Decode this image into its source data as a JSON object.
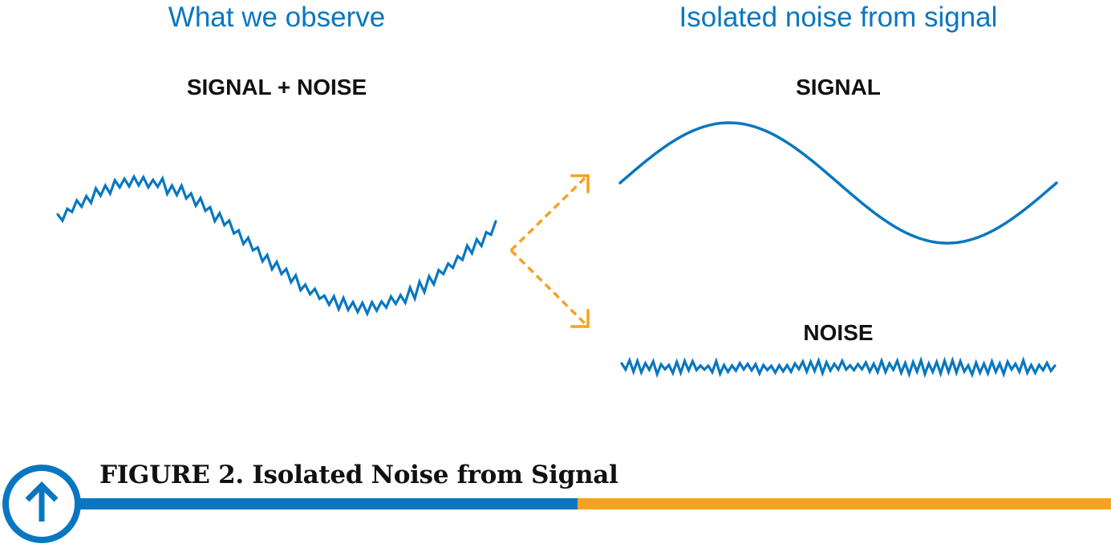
{
  "headings": {
    "left": "What we observe",
    "right": "Isolated noise from signal"
  },
  "labels": {
    "combined": "SIGNAL + NOISE",
    "signal": "SIGNAL",
    "noise": "NOISE"
  },
  "caption": "FIGURE 2. Isolated Noise from Signal",
  "icons": {
    "badge": "up-arrow-icon",
    "split": "dashed-split-arrows"
  },
  "colors": {
    "blue": "#0877c0",
    "orange": "#f5a31f",
    "text": "#111111"
  }
}
